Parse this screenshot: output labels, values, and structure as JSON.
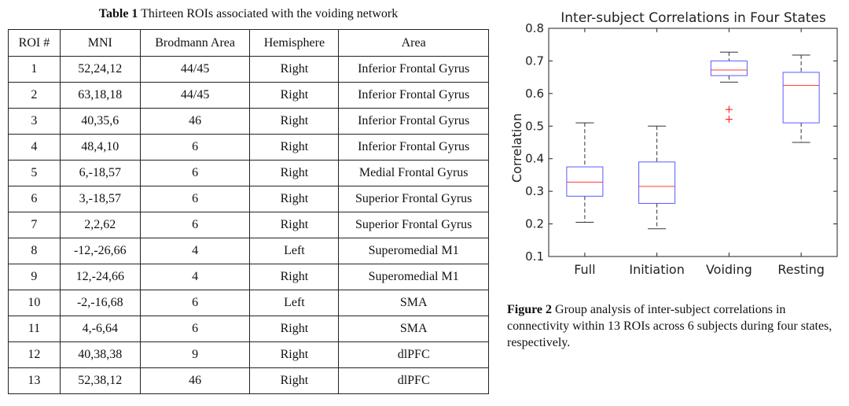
{
  "table": {
    "caption_label": "Table 1",
    "caption_text": "Thirteen ROIs associated with the voiding network",
    "headers": [
      "ROI #",
      "MNI",
      "Brodmann Area",
      "Hemisphere",
      "Area"
    ],
    "rows": [
      [
        "1",
        "52,24,12",
        "44/45",
        "Right",
        "Inferior Frontal Gyrus"
      ],
      [
        "2",
        "63,18,18",
        "44/45",
        "Right",
        "Inferior Frontal Gyrus"
      ],
      [
        "3",
        "40,35,6",
        "46",
        "Right",
        "Inferior Frontal Gyrus"
      ],
      [
        "4",
        "48,4,10",
        "6",
        "Right",
        "Inferior Frontal Gyrus"
      ],
      [
        "5",
        "6,-18,57",
        "6",
        "Right",
        "Medial Frontal Gyrus"
      ],
      [
        "6",
        "3,-18,57",
        "6",
        "Right",
        "Superior Frontal Gyrus"
      ],
      [
        "7",
        "2,2,62",
        "6",
        "Right",
        "Superior Frontal Gyrus"
      ],
      [
        "8",
        "-12,-26,66",
        "4",
        "Left",
        "Superomedial M1"
      ],
      [
        "9",
        "12,-24,66",
        "4",
        "Right",
        "Superomedial M1"
      ],
      [
        "10",
        "-2,-16,68",
        "6",
        "Left",
        "SMA"
      ],
      [
        "11",
        "4,-6,64",
        "6",
        "Right",
        "SMA"
      ],
      [
        "12",
        "40,38,38",
        "9",
        "Right",
        "dlPFC"
      ],
      [
        "13",
        "52,38,12",
        "46",
        "Right",
        "dlPFC"
      ]
    ]
  },
  "figure": {
    "caption_label": "Figure 2",
    "caption_text": "Group analysis of inter-subject correlations in connectivity within 13 ROIs across 6 subjects during four states, respectively."
  },
  "chart_data": {
    "type": "box",
    "title": "Inter-subject Correlations in Four States",
    "xlabel": "",
    "ylabel": "Correlation",
    "ylim": [
      0.1,
      0.8
    ],
    "yticks": [
      "0.1",
      "0.2",
      "0.3",
      "0.4",
      "0.5",
      "0.6",
      "0.7",
      "0.8"
    ],
    "grid": false,
    "colors": {
      "box": "#5a5aff",
      "median": "#ff3b3b",
      "whisker": "#333333",
      "outlier": "#ff2a2a"
    },
    "categories": [
      "Full",
      "Initiation",
      "Voiding",
      "Resting"
    ],
    "boxes": [
      {
        "whisker_low": 0.205,
        "q1": 0.285,
        "median": 0.328,
        "q3": 0.375,
        "whisker_high": 0.51,
        "outliers": []
      },
      {
        "whisker_low": 0.185,
        "q1": 0.263,
        "median": 0.315,
        "q3": 0.39,
        "whisker_high": 0.5,
        "outliers": []
      },
      {
        "whisker_low": 0.635,
        "q1": 0.655,
        "median": 0.672,
        "q3": 0.7,
        "whisker_high": 0.727,
        "outliers": [
          0.553,
          0.522
        ]
      },
      {
        "whisker_low": 0.45,
        "q1": 0.51,
        "median": 0.625,
        "q3": 0.665,
        "whisker_high": 0.718,
        "outliers": []
      }
    ]
  }
}
